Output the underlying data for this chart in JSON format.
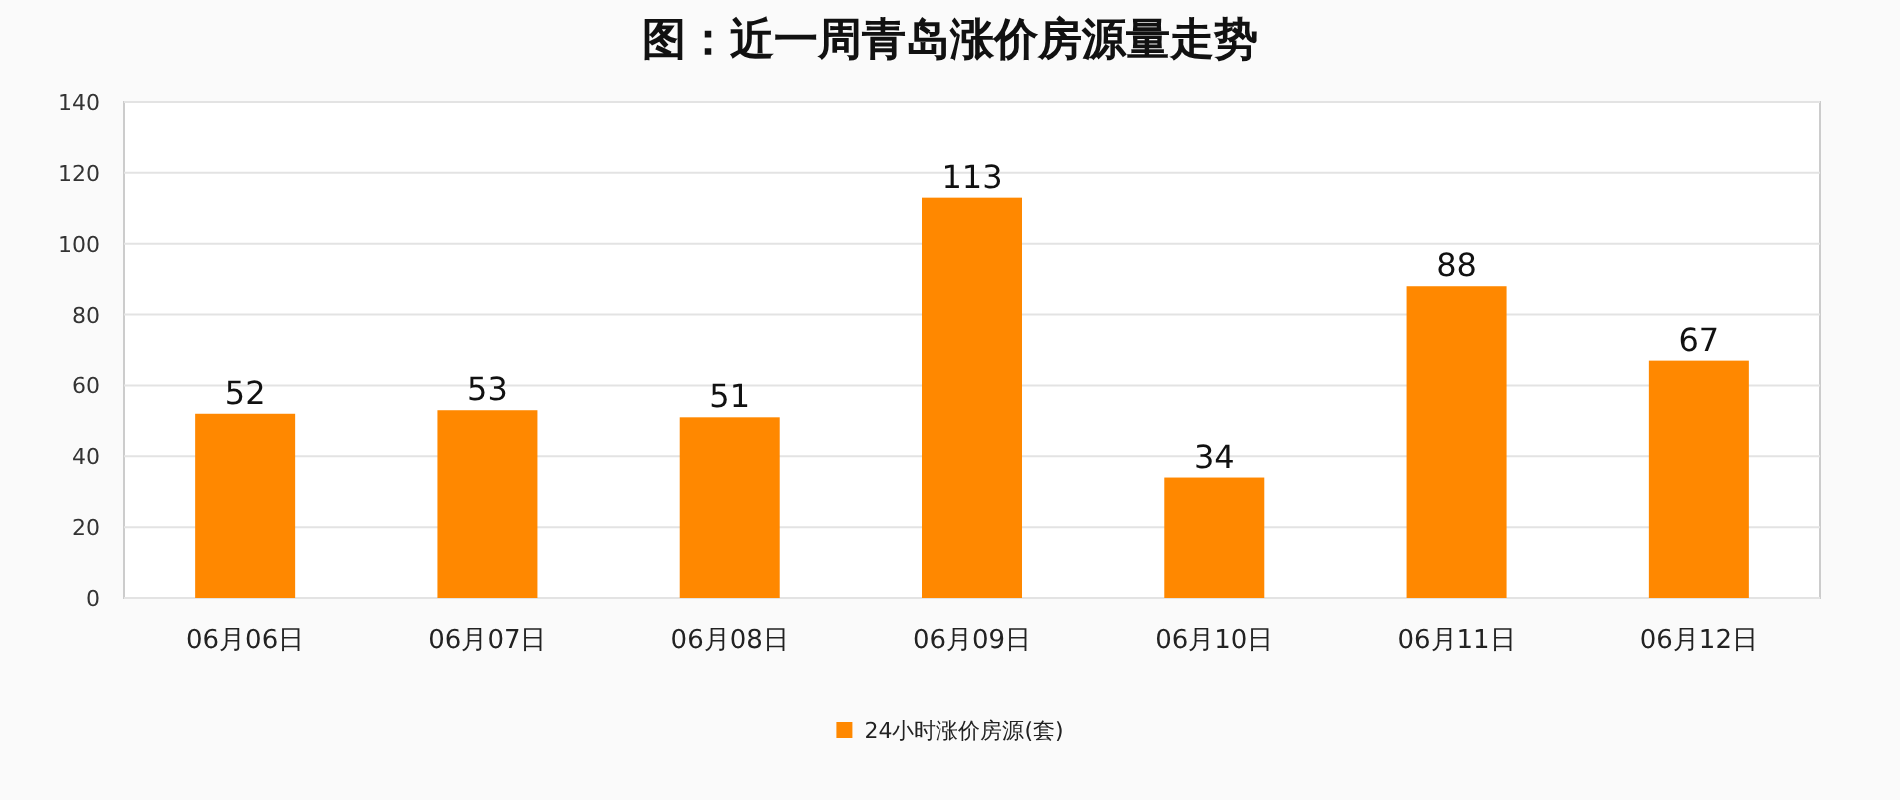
{
  "chart_data": {
    "type": "bar",
    "title": "图：近一周青岛涨价房源量走势",
    "categories": [
      "06月06日",
      "06月07日",
      "06月08日",
      "06月09日",
      "06月10日",
      "06月11日",
      "06月12日"
    ],
    "series": [
      {
        "name": "24小时涨价房源(套)",
        "color": "#ff8800",
        "values": [
          52,
          53,
          51,
          113,
          34,
          88,
          67
        ]
      }
    ],
    "ylim": [
      0,
      140
    ],
    "yticks": [
      0,
      20,
      40,
      60,
      80,
      100,
      120,
      140
    ],
    "grid": "y",
    "legend": "bottom",
    "data_labels": true
  }
}
